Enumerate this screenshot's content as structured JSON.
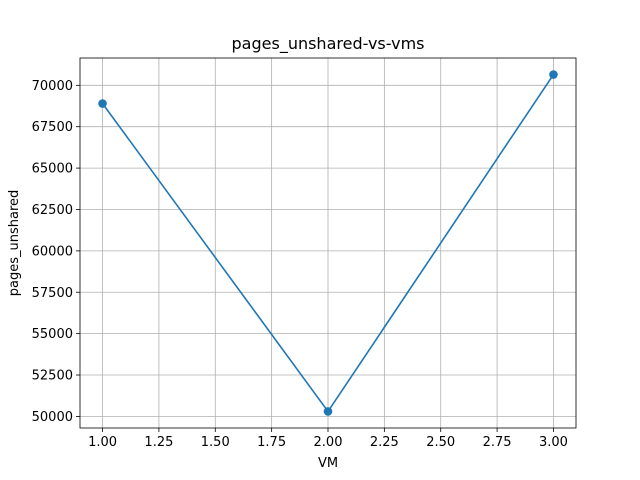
{
  "chart_data": {
    "type": "line",
    "title": "pages_unshared-vs-vms",
    "xlabel": "VM",
    "ylabel": "pages_unshared",
    "x": [
      1.0,
      2.0,
      3.0
    ],
    "series": [
      {
        "values": [
          68900,
          50300,
          70650
        ],
        "color": "#1f77b4",
        "marker": "circle"
      }
    ],
    "xlim": [
      0.9,
      3.1
    ],
    "ylim": [
      49300,
      71650
    ],
    "xticks": [
      1.0,
      1.25,
      1.5,
      1.75,
      2.0,
      2.25,
      2.5,
      2.75,
      3.0
    ],
    "xtick_labels": [
      "1.00",
      "1.25",
      "1.50",
      "1.75",
      "2.00",
      "2.25",
      "2.50",
      "2.75",
      "3.00"
    ],
    "yticks": [
      50000,
      52500,
      55000,
      57500,
      60000,
      62500,
      65000,
      67500,
      70000
    ],
    "ytick_labels": [
      "50000",
      "52500",
      "55000",
      "57500",
      "60000",
      "62500",
      "65000",
      "67500",
      "70000"
    ],
    "grid": true,
    "legend": "none"
  }
}
